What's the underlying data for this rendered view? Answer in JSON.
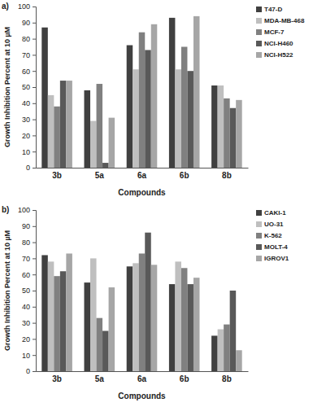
{
  "chart_data": [
    {
      "type": "bar",
      "title": "a)",
      "x_label": "Compounds",
      "y_label": "Growth Inhibition Percent at 10 µM",
      "categories": [
        "3b",
        "5a",
        "6a",
        "6b",
        "8b"
      ],
      "series": [
        {
          "name": "T47-D",
          "color": "#404040",
          "values": [
            87,
            48,
            76,
            93,
            51
          ]
        },
        {
          "name": "MDA-MB-468",
          "color": "#bfbfbf",
          "values": [
            45,
            29,
            61,
            61,
            51
          ]
        },
        {
          "name": "MCF-7",
          "color": "#808080",
          "values": [
            38,
            52,
            84,
            75,
            43
          ]
        },
        {
          "name": "NCI-H460",
          "color": "#595959",
          "values": [
            54,
            3,
            73,
            60,
            37
          ]
        },
        {
          "name": "NCI-H522",
          "color": "#a6a6a6",
          "values": [
            54,
            31,
            89,
            94,
            42
          ]
        }
      ],
      "ylim": [
        0,
        100
      ],
      "yticks": [
        0,
        10,
        20,
        30,
        40,
        50,
        60,
        70,
        80,
        90,
        100
      ],
      "grid": false,
      "legend": "right"
    },
    {
      "type": "bar",
      "title": "b)",
      "x_label": "Compounds",
      "y_label": "Growth Inhibition Percent at 10 µM",
      "categories": [
        "3b",
        "5a",
        "6a",
        "6b",
        "8b"
      ],
      "series": [
        {
          "name": "CAKI-1",
          "color": "#404040",
          "values": [
            72,
            55,
            65,
            54,
            22
          ]
        },
        {
          "name": "UO-31",
          "color": "#bfbfbf",
          "values": [
            68,
            70,
            67,
            68,
            26
          ]
        },
        {
          "name": "K-562",
          "color": "#808080",
          "values": [
            59,
            33,
            73,
            64,
            29
          ]
        },
        {
          "name": "MOLT-4",
          "color": "#595959",
          "values": [
            62,
            25,
            86,
            54,
            50
          ]
        },
        {
          "name": "IGROV1",
          "color": "#a6a6a6",
          "values": [
            73,
            52,
            66,
            58,
            13
          ]
        }
      ],
      "ylim": [
        0,
        100
      ],
      "yticks": [
        0,
        10,
        20,
        30,
        40,
        50,
        60,
        70,
        80,
        90,
        100
      ],
      "grid": false,
      "legend": "right"
    }
  ]
}
